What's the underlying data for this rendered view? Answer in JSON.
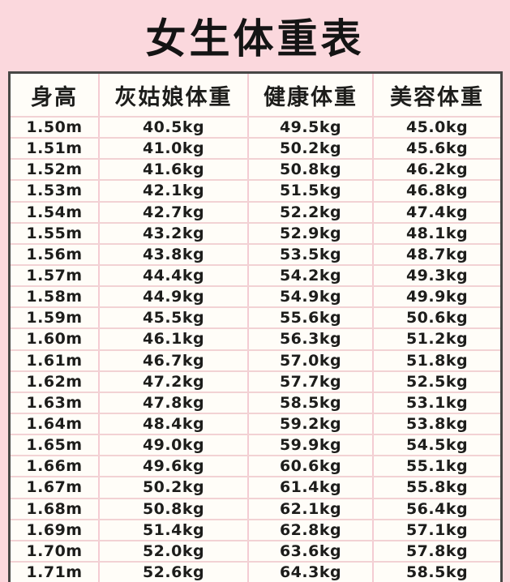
{
  "title": "女生体重表",
  "colors": {
    "background_pink": "#fbd8dd",
    "table_background": "#fffdf8",
    "table_border_dark": "#474745",
    "separator_pink": "#f4ccd3",
    "text": "#1d1d1b"
  },
  "table": {
    "headers": [
      "身高",
      "灰姑娘体重",
      "健康体重",
      "美容体重"
    ],
    "rows": [
      [
        "1.50m",
        "40.5kg",
        "49.5kg",
        "45.0kg"
      ],
      [
        "1.51m",
        "41.0kg",
        "50.2kg",
        "45.6kg"
      ],
      [
        "1.52m",
        "41.6kg",
        "50.8kg",
        "46.2kg"
      ],
      [
        "1.53m",
        "42.1kg",
        "51.5kg",
        "46.8kg"
      ],
      [
        "1.54m",
        "42.7kg",
        "52.2kg",
        "47.4kg"
      ],
      [
        "1.55m",
        "43.2kg",
        "52.9kg",
        "48.1kg"
      ],
      [
        "1.56m",
        "43.8kg",
        "53.5kg",
        "48.7kg"
      ],
      [
        "1.57m",
        "44.4kg",
        "54.2kg",
        "49.3kg"
      ],
      [
        "1.58m",
        "44.9kg",
        "54.9kg",
        "49.9kg"
      ],
      [
        "1.59m",
        "45.5kg",
        "55.6kg",
        "50.6kg"
      ],
      [
        "1.60m",
        "46.1kg",
        "56.3kg",
        "51.2kg"
      ],
      [
        "1.61m",
        "46.7kg",
        "57.0kg",
        "51.8kg"
      ],
      [
        "1.62m",
        "47.2kg",
        "57.7kg",
        "52.5kg"
      ],
      [
        "1.63m",
        "47.8kg",
        "58.5kg",
        "53.1kg"
      ],
      [
        "1.64m",
        "48.4kg",
        "59.2kg",
        "53.8kg"
      ],
      [
        "1.65m",
        "49.0kg",
        "59.9kg",
        "54.5kg"
      ],
      [
        "1.66m",
        "49.6kg",
        "60.6kg",
        "55.1kg"
      ],
      [
        "1.67m",
        "50.2kg",
        "61.4kg",
        "55.8kg"
      ],
      [
        "1.68m",
        "50.8kg",
        "62.1kg",
        "56.4kg"
      ],
      [
        "1.69m",
        "51.4kg",
        "62.8kg",
        "57.1kg"
      ],
      [
        "1.70m",
        "52.0kg",
        "63.6kg",
        "57.8kg"
      ],
      [
        "1.71m",
        "52.6kg",
        "64.3kg",
        "58.5kg"
      ]
    ]
  }
}
